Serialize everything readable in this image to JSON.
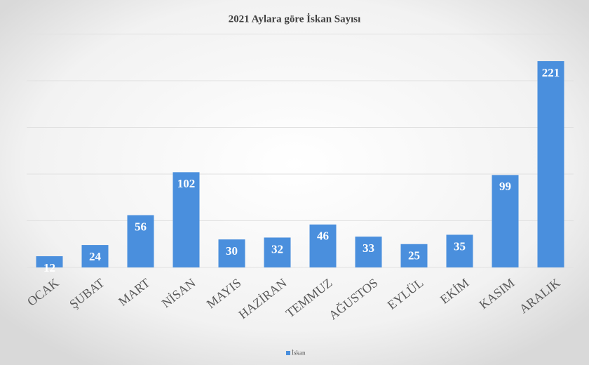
{
  "chart_data": {
    "type": "bar",
    "title": "2021 Aylara göre İskan Sayısı",
    "categories": [
      "OCAK",
      "ŞUBAT",
      "MART",
      "NİSAN",
      "MAYIS",
      "HAZİRAN",
      "TEMMUZ",
      "AĞUSTOS",
      "EYLÜL",
      "EKİM",
      "KASIM",
      "ARALIK"
    ],
    "series": [
      {
        "name": "İskan",
        "color": "#4a8fdd",
        "values": [
          12,
          24,
          56,
          102,
          30,
          32,
          46,
          33,
          25,
          35,
          99,
          221
        ]
      }
    ],
    "ylim": [
      0,
      250
    ],
    "yticks": [
      0,
      50,
      100,
      150,
      200,
      250
    ],
    "grid": true,
    "legend": "bottom"
  }
}
